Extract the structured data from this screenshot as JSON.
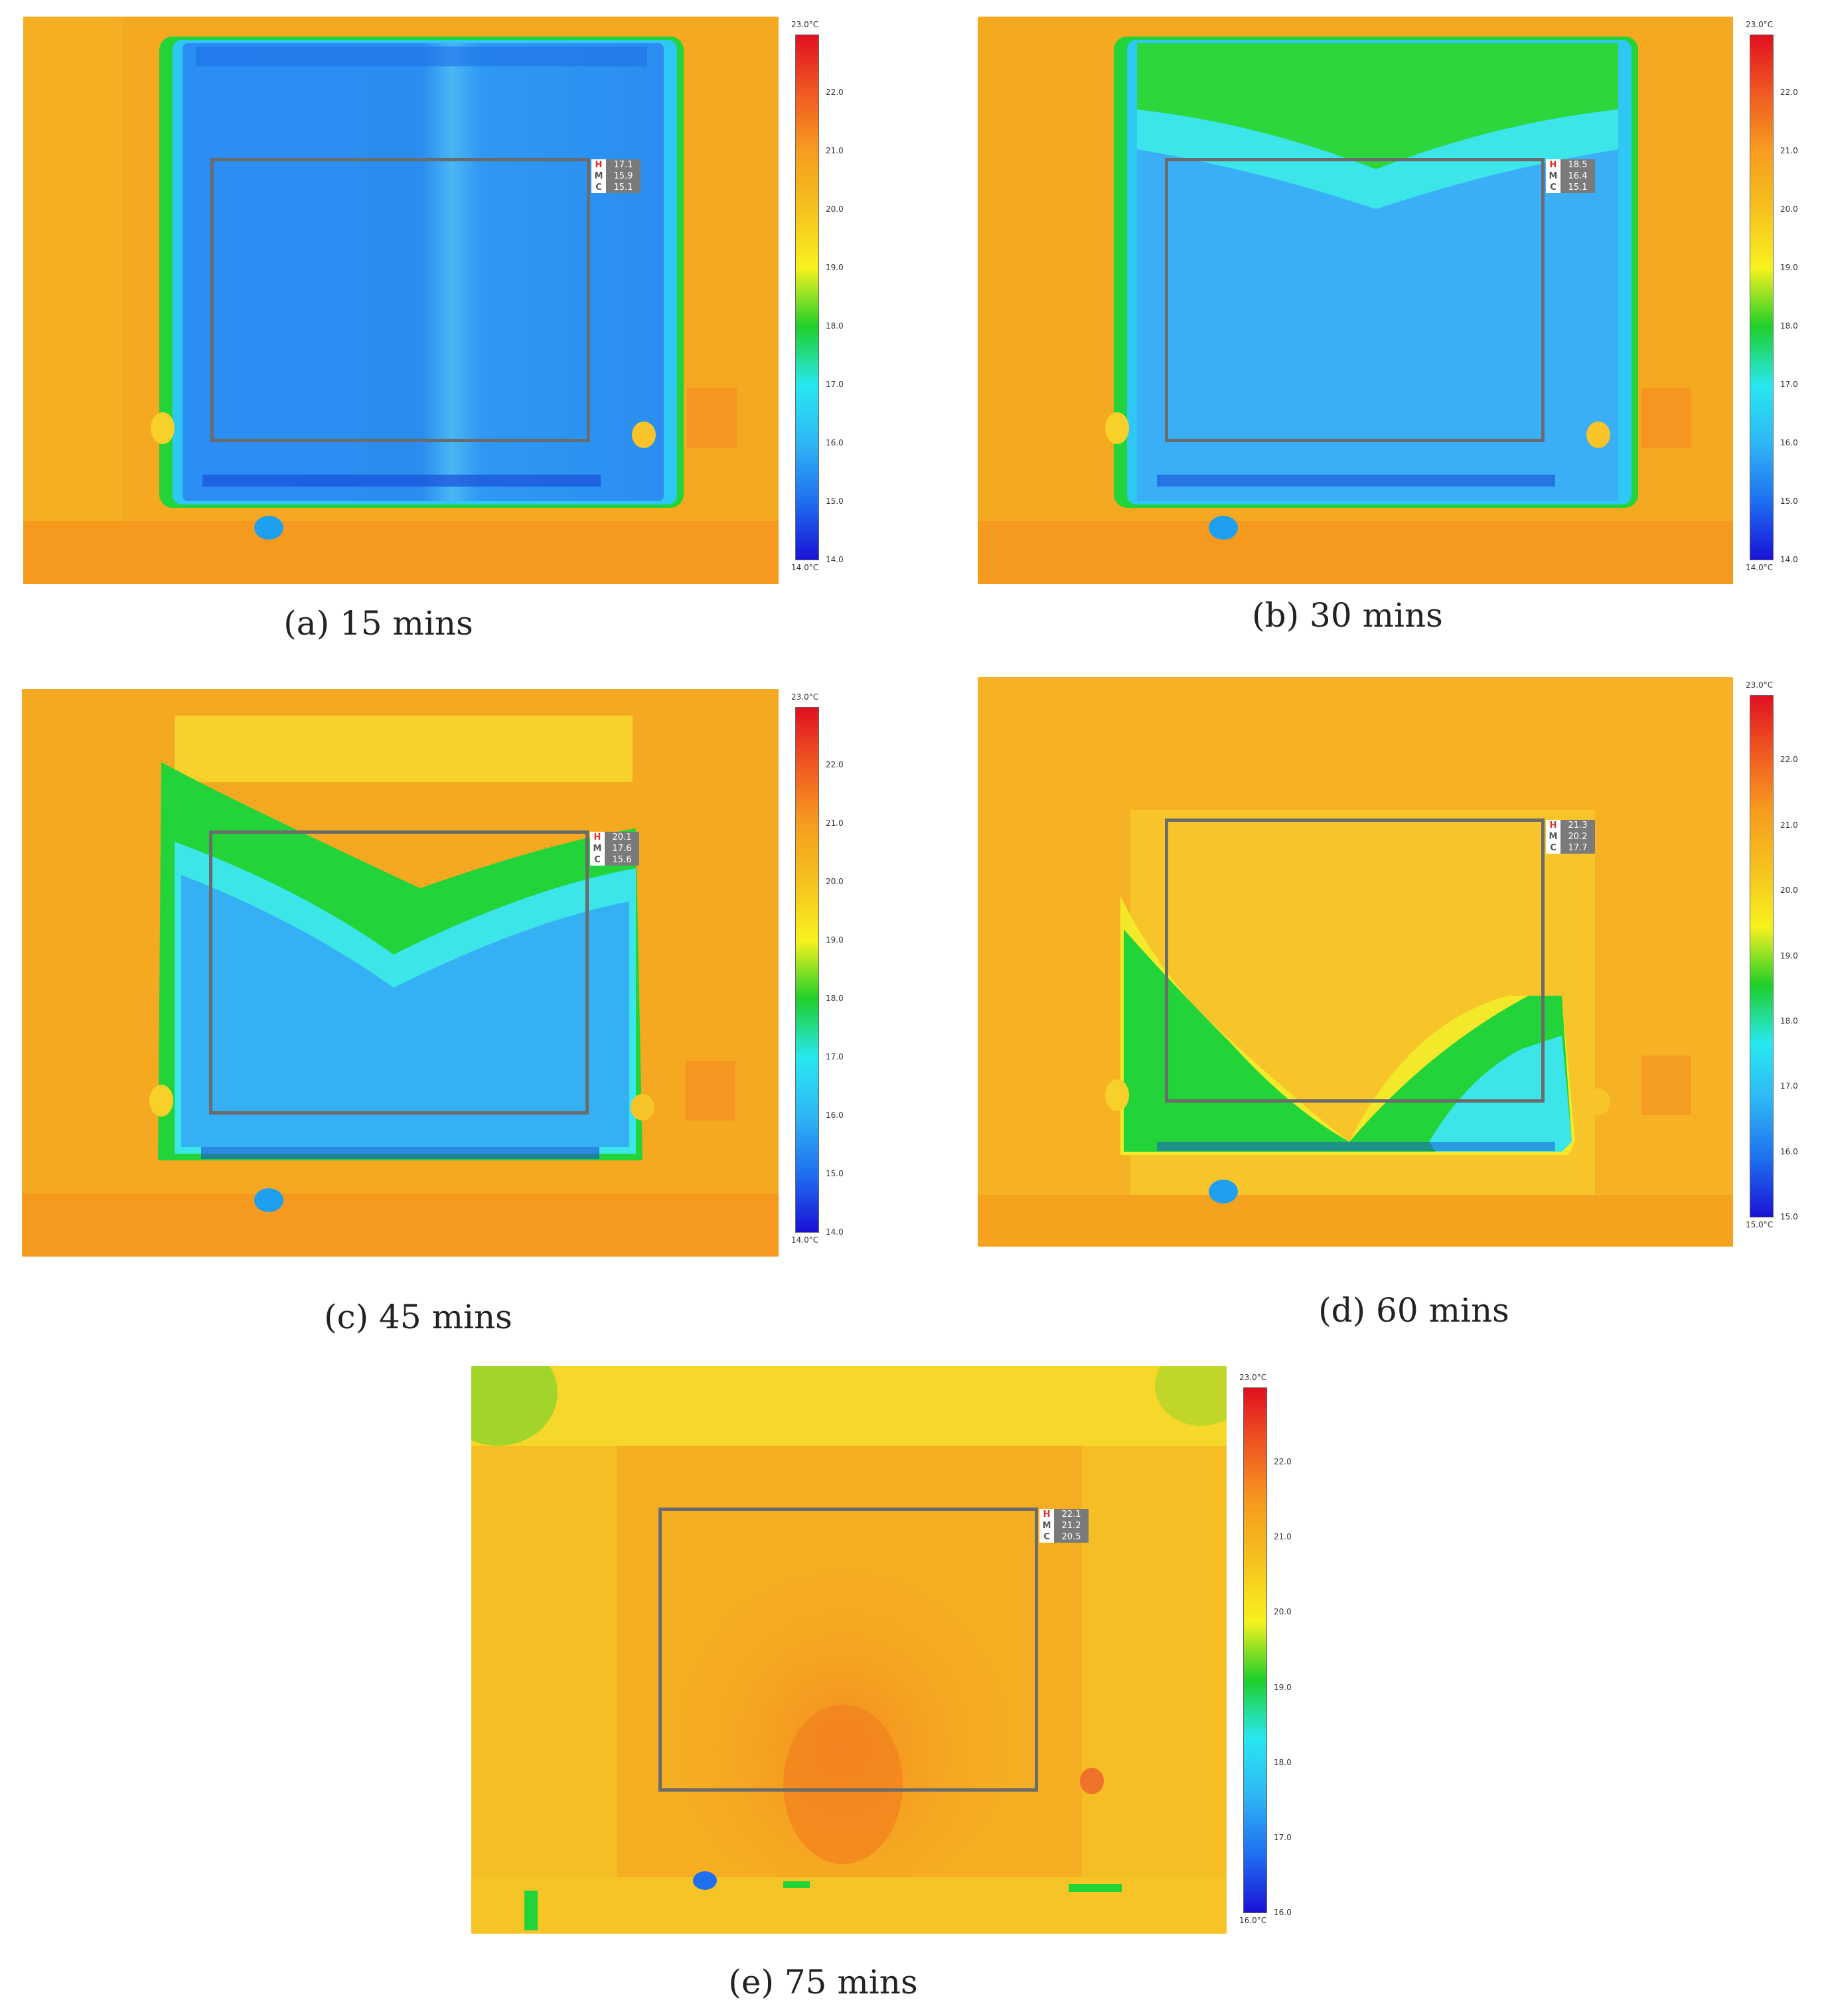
{
  "colors": {
    "palette": [
      "#1a12d6",
      "#1f6ff0",
      "#2fb6f5",
      "#28e8f0",
      "#1fcf2a",
      "#f7f21e",
      "#f6c21e",
      "#f79d1f",
      "#f05a22",
      "#e01020"
    ]
  },
  "panels": [
    {
      "id": "a",
      "caption": "(a) 15 mins",
      "readout": {
        "H": "17.1",
        "M": "15.9",
        "C": "15.1"
      },
      "scale": {
        "top": "23.0°C",
        "bottom": "14.0°C",
        "ticks": [
          "22.0",
          "21.0",
          "20.0",
          "19.0",
          "18.0",
          "17.0",
          "16.0",
          "15.0",
          "14.0"
        ]
      }
    },
    {
      "id": "b",
      "caption": "(b) 30 mins",
      "readout": {
        "H": "18.5",
        "M": "16.4",
        "C": "15.1"
      },
      "scale": {
        "top": "23.0°C",
        "bottom": "14.0°C",
        "ticks": [
          "22.0",
          "21.0",
          "20.0",
          "19.0",
          "18.0",
          "17.0",
          "16.0",
          "15.0",
          "14.0"
        ]
      }
    },
    {
      "id": "c",
      "caption": "(c) 45 mins",
      "readout": {
        "H": "20.1",
        "M": "17.6",
        "C": "15.6"
      },
      "scale": {
        "top": "23.0°C",
        "bottom": "14.0°C",
        "ticks": [
          "22.0",
          "21.0",
          "20.0",
          "19.0",
          "18.0",
          "17.0",
          "16.0",
          "15.0",
          "14.0"
        ]
      }
    },
    {
      "id": "d",
      "caption": "(d) 60 mins",
      "readout": {
        "H": "21.3",
        "M": "20.2",
        "C": "17.7"
      },
      "scale": {
        "top": "23.0°C",
        "bottom": "15.0°C",
        "ticks": [
          "22.0",
          "21.0",
          "20.0",
          "19.0",
          "18.0",
          "17.0",
          "16.0",
          "15.0"
        ]
      }
    },
    {
      "id": "e",
      "caption": "(e) 75 mins",
      "readout": {
        "H": "22.1",
        "M": "21.2",
        "C": "20.5"
      },
      "scale": {
        "top": "23.0°C",
        "bottom": "16.0°C",
        "ticks": [
          "22.0",
          "21.0",
          "20.0",
          "19.0",
          "18.0",
          "17.0",
          "16.0"
        ]
      }
    }
  ]
}
